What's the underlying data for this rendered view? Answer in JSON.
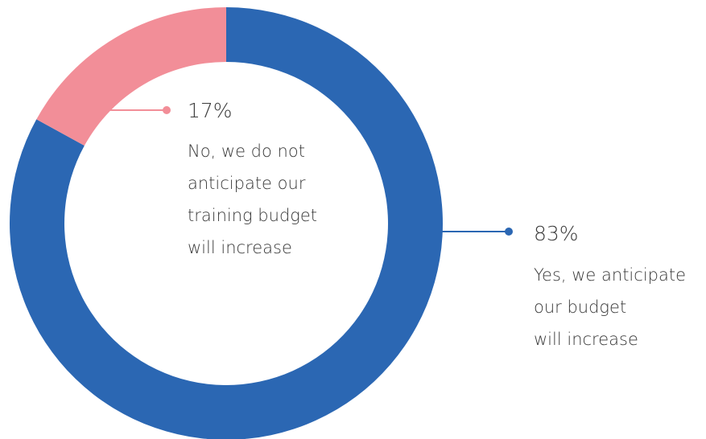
{
  "chart_data": {
    "type": "pie",
    "donut": true,
    "categories": [
      "Yes, we anticipate\nour budget\nwill increase",
      "No, we do not\nanticipate our\ntraining budget\nwill increase"
    ],
    "values": [
      83,
      17
    ],
    "value_labels": [
      "83%",
      "17%"
    ],
    "colors": [
      "#2b67b3",
      "#f28e98"
    ]
  }
}
